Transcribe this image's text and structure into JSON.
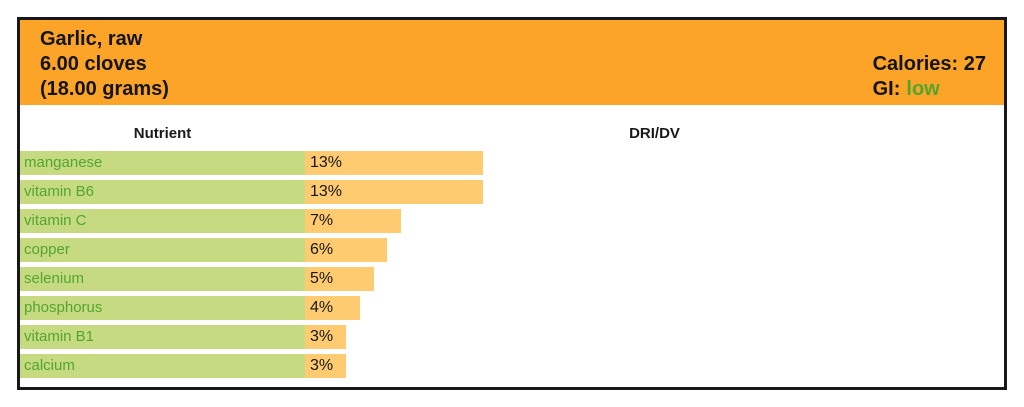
{
  "header": {
    "title_lines": [
      "Garlic, raw",
      "6.00 cloves",
      "(18.00 grams)"
    ],
    "calories_label": "Calories: 27",
    "gi_label": "GI:",
    "gi_value": "low"
  },
  "table": {
    "columns": [
      "Nutrient",
      "DRI/DV"
    ],
    "rows": [
      {
        "nutrient": "manganese",
        "dri_dv": "13%",
        "value": 13
      },
      {
        "nutrient": "vitamin B6",
        "dri_dv": "13%",
        "value": 13
      },
      {
        "nutrient": "vitamin C",
        "dri_dv": "7%",
        "value": 7
      },
      {
        "nutrient": "copper",
        "dri_dv": "6%",
        "value": 6
      },
      {
        "nutrient": "selenium",
        "dri_dv": "5%",
        "value": 5
      },
      {
        "nutrient": "phosphorus",
        "dri_dv": "4%",
        "value": 4
      },
      {
        "nutrient": "vitamin B1",
        "dri_dv": "3%",
        "value": 3
      },
      {
        "nutrient": "calcium",
        "dri_dv": "3%",
        "value": 3
      }
    ]
  },
  "colors": {
    "header_bg": "#fba428",
    "bar_fill": "#ffcb70",
    "label_bg": "#c6db81",
    "green_text": "#54a52f",
    "dark_text": "#161616",
    "border": "#181818"
  },
  "chart_data": {
    "type": "bar",
    "orientation": "horizontal",
    "title": "Garlic, raw 6.00 cloves (18.00 grams)",
    "categories": [
      "manganese",
      "vitamin B6",
      "vitamin C",
      "copper",
      "selenium",
      "phosphorus",
      "vitamin B1",
      "calcium"
    ],
    "values": [
      13,
      13,
      7,
      6,
      5,
      4,
      3,
      3
    ],
    "value_labels": [
      "13%",
      "13%",
      "7%",
      "6%",
      "5%",
      "4%",
      "3%",
      "3%"
    ],
    "xlabel": "DRI/DV",
    "ylabel": "Nutrient",
    "xlim": [
      0,
      51
    ],
    "grid": false,
    "legend": false,
    "annotations": {
      "calories": "Calories: 27",
      "glycemic_index": "GI: low"
    }
  }
}
